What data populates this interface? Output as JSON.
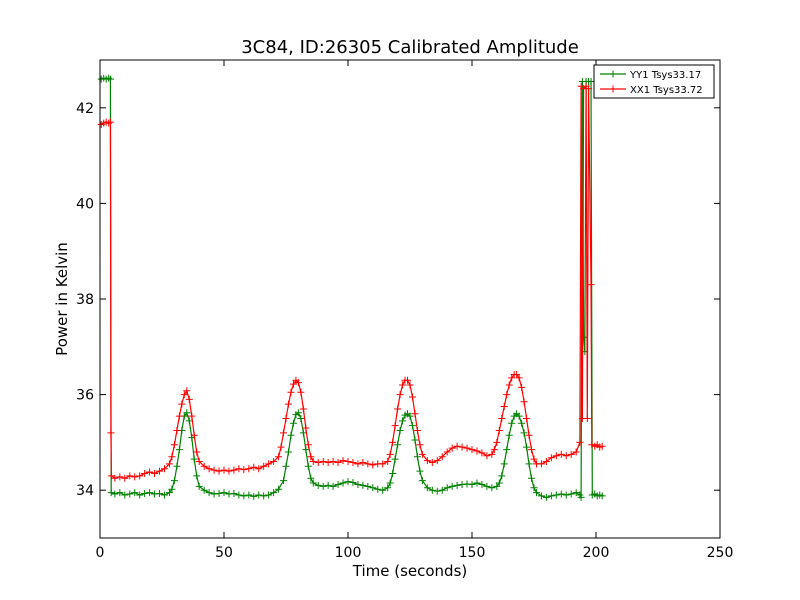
{
  "chart_data": {
    "type": "line",
    "title": "3C84, ID:26305 Calibrated Amplitude",
    "xlabel": "Time (seconds)",
    "ylabel": "Power in Kelvin",
    "xlim": [
      0,
      250
    ],
    "ylim": [
      33,
      43
    ],
    "xticks": [
      0,
      50,
      100,
      150,
      200,
      250
    ],
    "yticks": [
      34,
      36,
      38,
      40,
      42
    ],
    "grid": false,
    "legend_position": "top-right",
    "marker": "+",
    "series": [
      {
        "name": "YY1 Tsys33.17",
        "color": "#008000",
        "points": [
          [
            0.5,
            42.6
          ],
          [
            1.5,
            42.62
          ],
          [
            2.5,
            42.6
          ],
          [
            3.5,
            42.62
          ],
          [
            4.2,
            42.6
          ],
          [
            4.5,
            33.95
          ],
          [
            6,
            33.92
          ],
          [
            8,
            33.95
          ],
          [
            10,
            33.9
          ],
          [
            12,
            33.92
          ],
          [
            14,
            33.95
          ],
          [
            16,
            33.9
          ],
          [
            18,
            33.93
          ],
          [
            20,
            33.95
          ],
          [
            22,
            33.92
          ],
          [
            24,
            33.93
          ],
          [
            26,
            33.9
          ],
          [
            28,
            33.95
          ],
          [
            29,
            34.02
          ],
          [
            30,
            34.2
          ],
          [
            31,
            34.5
          ],
          [
            32,
            34.85
          ],
          [
            33,
            35.25
          ],
          [
            34,
            35.55
          ],
          [
            35,
            35.62
          ],
          [
            36,
            35.45
          ],
          [
            37,
            35.1
          ],
          [
            38,
            34.65
          ],
          [
            39,
            34.3
          ],
          [
            40,
            34.08
          ],
          [
            42,
            34.0
          ],
          [
            44,
            33.95
          ],
          [
            46,
            33.92
          ],
          [
            48,
            33.93
          ],
          [
            50,
            33.95
          ],
          [
            52,
            33.92
          ],
          [
            54,
            33.93
          ],
          [
            56,
            33.9
          ],
          [
            58,
            33.88
          ],
          [
            60,
            33.9
          ],
          [
            62,
            33.87
          ],
          [
            64,
            33.9
          ],
          [
            66,
            33.88
          ],
          [
            68,
            33.9
          ],
          [
            70,
            33.95
          ],
          [
            72,
            34.02
          ],
          [
            74,
            34.2
          ],
          [
            75,
            34.5
          ],
          [
            76,
            34.8
          ],
          [
            77,
            35.15
          ],
          [
            78,
            35.4
          ],
          [
            79,
            35.58
          ],
          [
            80,
            35.62
          ],
          [
            81,
            35.5
          ],
          [
            82,
            35.2
          ],
          [
            83,
            34.85
          ],
          [
            84,
            34.5
          ],
          [
            85,
            34.25
          ],
          [
            86,
            34.15
          ],
          [
            88,
            34.1
          ],
          [
            90,
            34.08
          ],
          [
            92,
            34.1
          ],
          [
            94,
            34.08
          ],
          [
            96,
            34.12
          ],
          [
            98,
            34.15
          ],
          [
            100,
            34.18
          ],
          [
            102,
            34.16
          ],
          [
            104,
            34.12
          ],
          [
            106,
            34.1
          ],
          [
            108,
            34.08
          ],
          [
            110,
            34.05
          ],
          [
            112,
            34.02
          ],
          [
            114,
            34.0
          ],
          [
            116,
            34.05
          ],
          [
            117,
            34.15
          ],
          [
            118,
            34.35
          ],
          [
            119,
            34.65
          ],
          [
            120,
            34.95
          ],
          [
            121,
            35.25
          ],
          [
            122,
            35.45
          ],
          [
            123,
            35.57
          ],
          [
            124,
            35.6
          ],
          [
            125,
            35.55
          ],
          [
            126,
            35.35
          ],
          [
            127,
            35.05
          ],
          [
            128,
            34.7
          ],
          [
            129,
            34.4
          ],
          [
            130,
            34.2
          ],
          [
            132,
            34.05
          ],
          [
            134,
            34.0
          ],
          [
            136,
            33.98
          ],
          [
            138,
            34.0
          ],
          [
            140,
            34.05
          ],
          [
            142,
            34.08
          ],
          [
            144,
            34.1
          ],
          [
            146,
            34.12
          ],
          [
            148,
            34.13
          ],
          [
            150,
            34.12
          ],
          [
            152,
            34.15
          ],
          [
            154,
            34.12
          ],
          [
            156,
            34.08
          ],
          [
            158,
            34.05
          ],
          [
            160,
            34.08
          ],
          [
            161,
            34.15
          ],
          [
            162,
            34.3
          ],
          [
            163,
            34.55
          ],
          [
            164,
            34.85
          ],
          [
            165,
            35.15
          ],
          [
            166,
            35.4
          ],
          [
            167,
            35.55
          ],
          [
            168,
            35.6
          ],
          [
            169,
            35.55
          ],
          [
            170,
            35.4
          ],
          [
            171,
            35.2
          ],
          [
            172,
            34.9
          ],
          [
            173,
            34.55
          ],
          [
            174,
            34.25
          ],
          [
            175,
            34.05
          ],
          [
            176,
            33.95
          ],
          [
            178,
            33.88
          ],
          [
            180,
            33.85
          ],
          [
            182,
            33.88
          ],
          [
            184,
            33.9
          ],
          [
            186,
            33.92
          ],
          [
            188,
            33.9
          ],
          [
            190,
            33.92
          ],
          [
            192,
            33.95
          ],
          [
            193.5,
            33.9
          ],
          [
            194,
            33.85
          ],
          [
            194.5,
            42.55
          ],
          [
            195,
            37.2
          ],
          [
            195.5,
            36.9
          ],
          [
            196,
            42.55
          ],
          [
            197,
            42.55
          ],
          [
            198,
            42.55
          ],
          [
            198.5,
            33.9
          ],
          [
            199.5,
            33.92
          ],
          [
            200.5,
            33.88
          ],
          [
            201.5,
            33.9
          ],
          [
            202.5,
            33.88
          ]
        ]
      },
      {
        "name": "XX1 Tsys33.72",
        "color": "#ff0000",
        "points": [
          [
            0.5,
            41.65
          ],
          [
            1.5,
            41.68
          ],
          [
            2.5,
            41.7
          ],
          [
            3.5,
            41.68
          ],
          [
            4.2,
            41.7
          ],
          [
            4.4,
            35.2
          ],
          [
            4.6,
            34.3
          ],
          [
            6,
            34.25
          ],
          [
            8,
            34.28
          ],
          [
            10,
            34.25
          ],
          [
            12,
            34.3
          ],
          [
            14,
            34.28
          ],
          [
            16,
            34.3
          ],
          [
            18,
            34.35
          ],
          [
            20,
            34.38
          ],
          [
            22,
            34.35
          ],
          [
            24,
            34.4
          ],
          [
            26,
            34.45
          ],
          [
            28,
            34.55
          ],
          [
            29,
            34.7
          ],
          [
            30,
            34.95
          ],
          [
            31,
            35.25
          ],
          [
            32,
            35.55
          ],
          [
            33,
            35.8
          ],
          [
            34,
            36.0
          ],
          [
            35,
            36.08
          ],
          [
            36,
            35.9
          ],
          [
            37,
            35.55
          ],
          [
            38,
            35.15
          ],
          [
            39,
            34.8
          ],
          [
            40,
            34.6
          ],
          [
            42,
            34.5
          ],
          [
            44,
            34.45
          ],
          [
            46,
            34.42
          ],
          [
            48,
            34.4
          ],
          [
            50,
            34.42
          ],
          [
            52,
            34.4
          ],
          [
            54,
            34.42
          ],
          [
            56,
            34.45
          ],
          [
            58,
            34.43
          ],
          [
            60,
            34.45
          ],
          [
            62,
            34.48
          ],
          [
            64,
            34.45
          ],
          [
            66,
            34.5
          ],
          [
            68,
            34.55
          ],
          [
            70,
            34.6
          ],
          [
            72,
            34.7
          ],
          [
            73,
            34.9
          ],
          [
            74,
            35.2
          ],
          [
            75,
            35.5
          ],
          [
            76,
            35.8
          ],
          [
            77,
            36.05
          ],
          [
            78,
            36.22
          ],
          [
            79,
            36.3
          ],
          [
            80,
            36.25
          ],
          [
            81,
            36.05
          ],
          [
            82,
            35.7
          ],
          [
            83,
            35.3
          ],
          [
            84,
            34.95
          ],
          [
            85,
            34.7
          ],
          [
            86,
            34.6
          ],
          [
            88,
            34.58
          ],
          [
            90,
            34.6
          ],
          [
            92,
            34.58
          ],
          [
            94,
            34.6
          ],
          [
            96,
            34.58
          ],
          [
            98,
            34.62
          ],
          [
            100,
            34.6
          ],
          [
            102,
            34.58
          ],
          [
            104,
            34.55
          ],
          [
            106,
            34.58
          ],
          [
            108,
            34.55
          ],
          [
            110,
            34.53
          ],
          [
            112,
            34.55
          ],
          [
            114,
            34.55
          ],
          [
            116,
            34.6
          ],
          [
            117,
            34.75
          ],
          [
            118,
            35.0
          ],
          [
            119,
            35.35
          ],
          [
            120,
            35.7
          ],
          [
            121,
            36.0
          ],
          [
            122,
            36.2
          ],
          [
            123,
            36.3
          ],
          [
            124,
            36.3
          ],
          [
            125,
            36.2
          ],
          [
            126,
            35.95
          ],
          [
            127,
            35.6
          ],
          [
            128,
            35.25
          ],
          [
            129,
            34.95
          ],
          [
            130,
            34.75
          ],
          [
            132,
            34.62
          ],
          [
            134,
            34.58
          ],
          [
            136,
            34.62
          ],
          [
            138,
            34.7
          ],
          [
            140,
            34.8
          ],
          [
            142,
            34.88
          ],
          [
            144,
            34.92
          ],
          [
            146,
            34.9
          ],
          [
            148,
            34.88
          ],
          [
            150,
            34.85
          ],
          [
            152,
            34.82
          ],
          [
            154,
            34.78
          ],
          [
            156,
            34.72
          ],
          [
            158,
            34.75
          ],
          [
            159,
            34.85
          ],
          [
            160,
            35.0
          ],
          [
            161,
            35.25
          ],
          [
            162,
            35.5
          ],
          [
            163,
            35.75
          ],
          [
            164,
            36.0
          ],
          [
            165,
            36.2
          ],
          [
            166,
            36.35
          ],
          [
            167,
            36.42
          ],
          [
            168,
            36.42
          ],
          [
            169,
            36.35
          ],
          [
            170,
            36.15
          ],
          [
            171,
            35.85
          ],
          [
            172,
            35.5
          ],
          [
            173,
            35.15
          ],
          [
            174,
            34.85
          ],
          [
            175,
            34.65
          ],
          [
            176,
            34.55
          ],
          [
            178,
            34.55
          ],
          [
            180,
            34.6
          ],
          [
            182,
            34.68
          ],
          [
            184,
            34.72
          ],
          [
            186,
            34.75
          ],
          [
            188,
            34.72
          ],
          [
            190,
            34.75
          ],
          [
            192,
            34.8
          ],
          [
            193.5,
            35.0
          ],
          [
            194,
            42.45
          ],
          [
            194.5,
            35.5
          ],
          [
            195,
            42.4
          ],
          [
            196,
            42.45
          ],
          [
            196.5,
            35.5
          ],
          [
            197,
            42.4
          ],
          [
            198,
            38.3
          ],
          [
            198.3,
            34.95
          ],
          [
            199.5,
            34.92
          ],
          [
            200.5,
            34.95
          ],
          [
            201.5,
            34.9
          ],
          [
            202.5,
            34.92
          ]
        ]
      }
    ]
  }
}
